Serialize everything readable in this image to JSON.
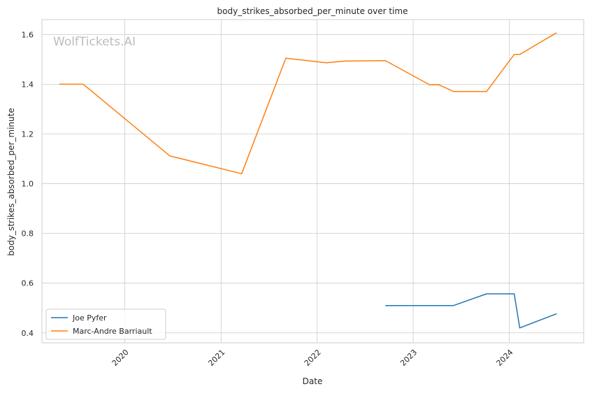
{
  "watermark": "WolfTickets.AI",
  "chart_data": {
    "type": "line",
    "title": "body_strikes_absorbed_per_minute over time",
    "xlabel": "Date",
    "ylabel": "body_strikes_absorbed_per_minute",
    "xlim": [
      "2019-02-20",
      "2024-10-10"
    ],
    "ylim": [
      0.36,
      1.66
    ],
    "x_ticks": [
      "2020",
      "2021",
      "2022",
      "2023",
      "2024"
    ],
    "y_ticks": [
      "0.4",
      "0.6",
      "0.8",
      "1.0",
      "1.2",
      "1.4",
      "1.6"
    ],
    "grid": true,
    "legend": "lower-left",
    "series": [
      {
        "name": "Joe Pyfer",
        "color": "#1f77b4",
        "points": [
          {
            "x": "2022-09-17",
            "y": 0.51
          },
          {
            "x": "2023-06-03",
            "y": 0.51
          },
          {
            "x": "2023-10-07",
            "y": 0.557
          },
          {
            "x": "2024-01-20",
            "y": 0.557
          },
          {
            "x": "2024-02-10",
            "y": 0.42
          },
          {
            "x": "2024-06-29",
            "y": 0.477
          }
        ]
      },
      {
        "name": "Marc-Andre Barriault",
        "color": "#ff7f0e",
        "points": [
          {
            "x": "2019-04-27",
            "y": 1.4
          },
          {
            "x": "2019-07-27",
            "y": 1.4
          },
          {
            "x": "2020-06-20",
            "y": 1.112
          },
          {
            "x": "2021-03-20",
            "y": 1.04
          },
          {
            "x": "2021-09-04",
            "y": 1.505
          },
          {
            "x": "2022-02-05",
            "y": 1.486
          },
          {
            "x": "2022-04-16",
            "y": 1.493
          },
          {
            "x": "2022-09-17",
            "y": 1.495
          },
          {
            "x": "2023-03-04",
            "y": 1.398
          },
          {
            "x": "2023-04-08",
            "y": 1.398
          },
          {
            "x": "2023-06-03",
            "y": 1.371
          },
          {
            "x": "2023-10-07",
            "y": 1.371
          },
          {
            "x": "2024-01-20",
            "y": 1.52
          },
          {
            "x": "2024-02-10",
            "y": 1.52
          },
          {
            "x": "2024-06-29",
            "y": 1.607
          }
        ]
      }
    ]
  }
}
